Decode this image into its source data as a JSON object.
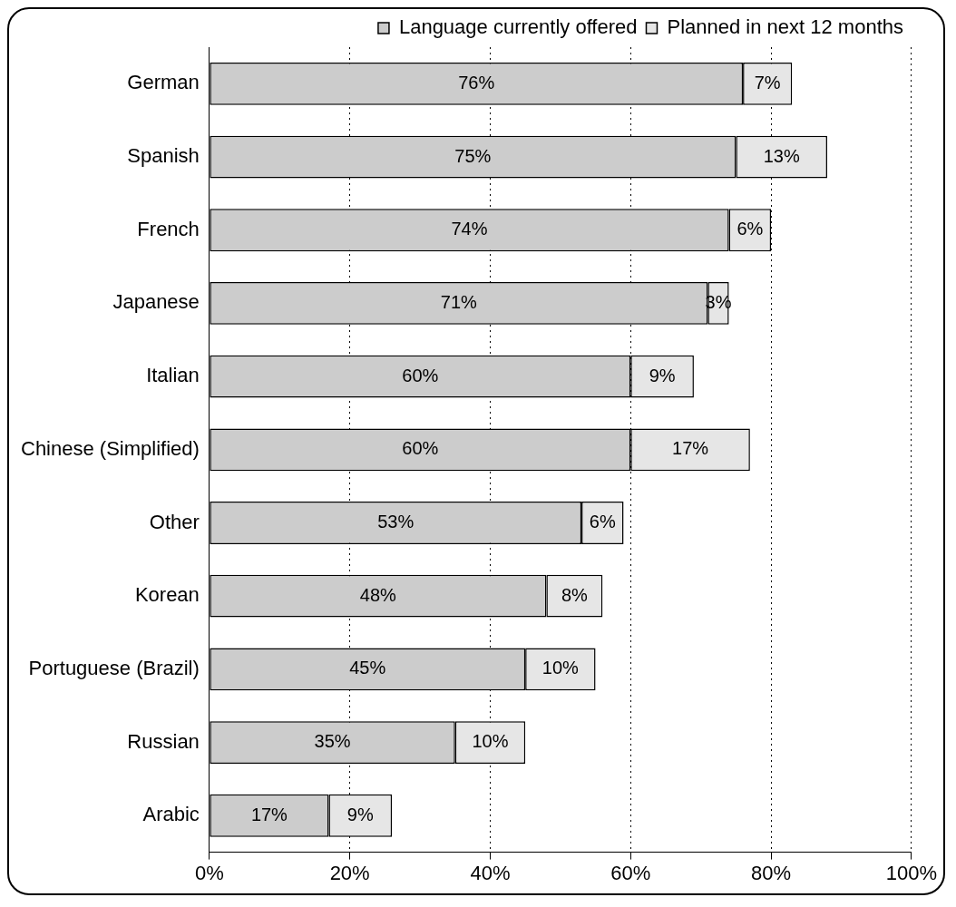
{
  "chart_data": {
    "type": "bar",
    "orientation": "horizontal",
    "stacked": true,
    "categories": [
      "German",
      "Spanish",
      "French",
      "Japanese",
      "Italian",
      "Chinese (Simplified)",
      "Other",
      "Korean",
      "Portuguese (Brazil)",
      "Russian",
      "Arabic"
    ],
    "series": [
      {
        "name": "Language currently offered",
        "color": "#cccccc",
        "values": [
          76,
          75,
          74,
          71,
          60,
          60,
          53,
          48,
          45,
          35,
          17
        ],
        "value_labels": [
          "76%",
          "75%",
          "74%",
          "71%",
          "60%",
          "60%",
          "53%",
          "48%",
          "45%",
          "35%",
          "17%"
        ]
      },
      {
        "name": "Planned in next 12 months",
        "color": "#e6e6e6",
        "values": [
          7,
          13,
          6,
          3,
          9,
          17,
          6,
          8,
          10,
          10,
          9
        ],
        "value_labels": [
          "7%",
          "13%",
          "6%",
          "3%",
          "9%",
          "17%",
          "6%",
          "8%",
          "10%",
          "10%",
          "9%"
        ]
      }
    ],
    "xlim": [
      0,
      100
    ],
    "xticks": [
      {
        "value": 0,
        "label": "0%"
      },
      {
        "value": 20,
        "label": "20%"
      },
      {
        "value": 40,
        "label": "40%"
      },
      {
        "value": 60,
        "label": "60%"
      },
      {
        "value": 80,
        "label": "80%"
      },
      {
        "value": 100,
        "label": "100%"
      }
    ],
    "grid": "x",
    "line_style": "dotted",
    "legend": "top right"
  }
}
